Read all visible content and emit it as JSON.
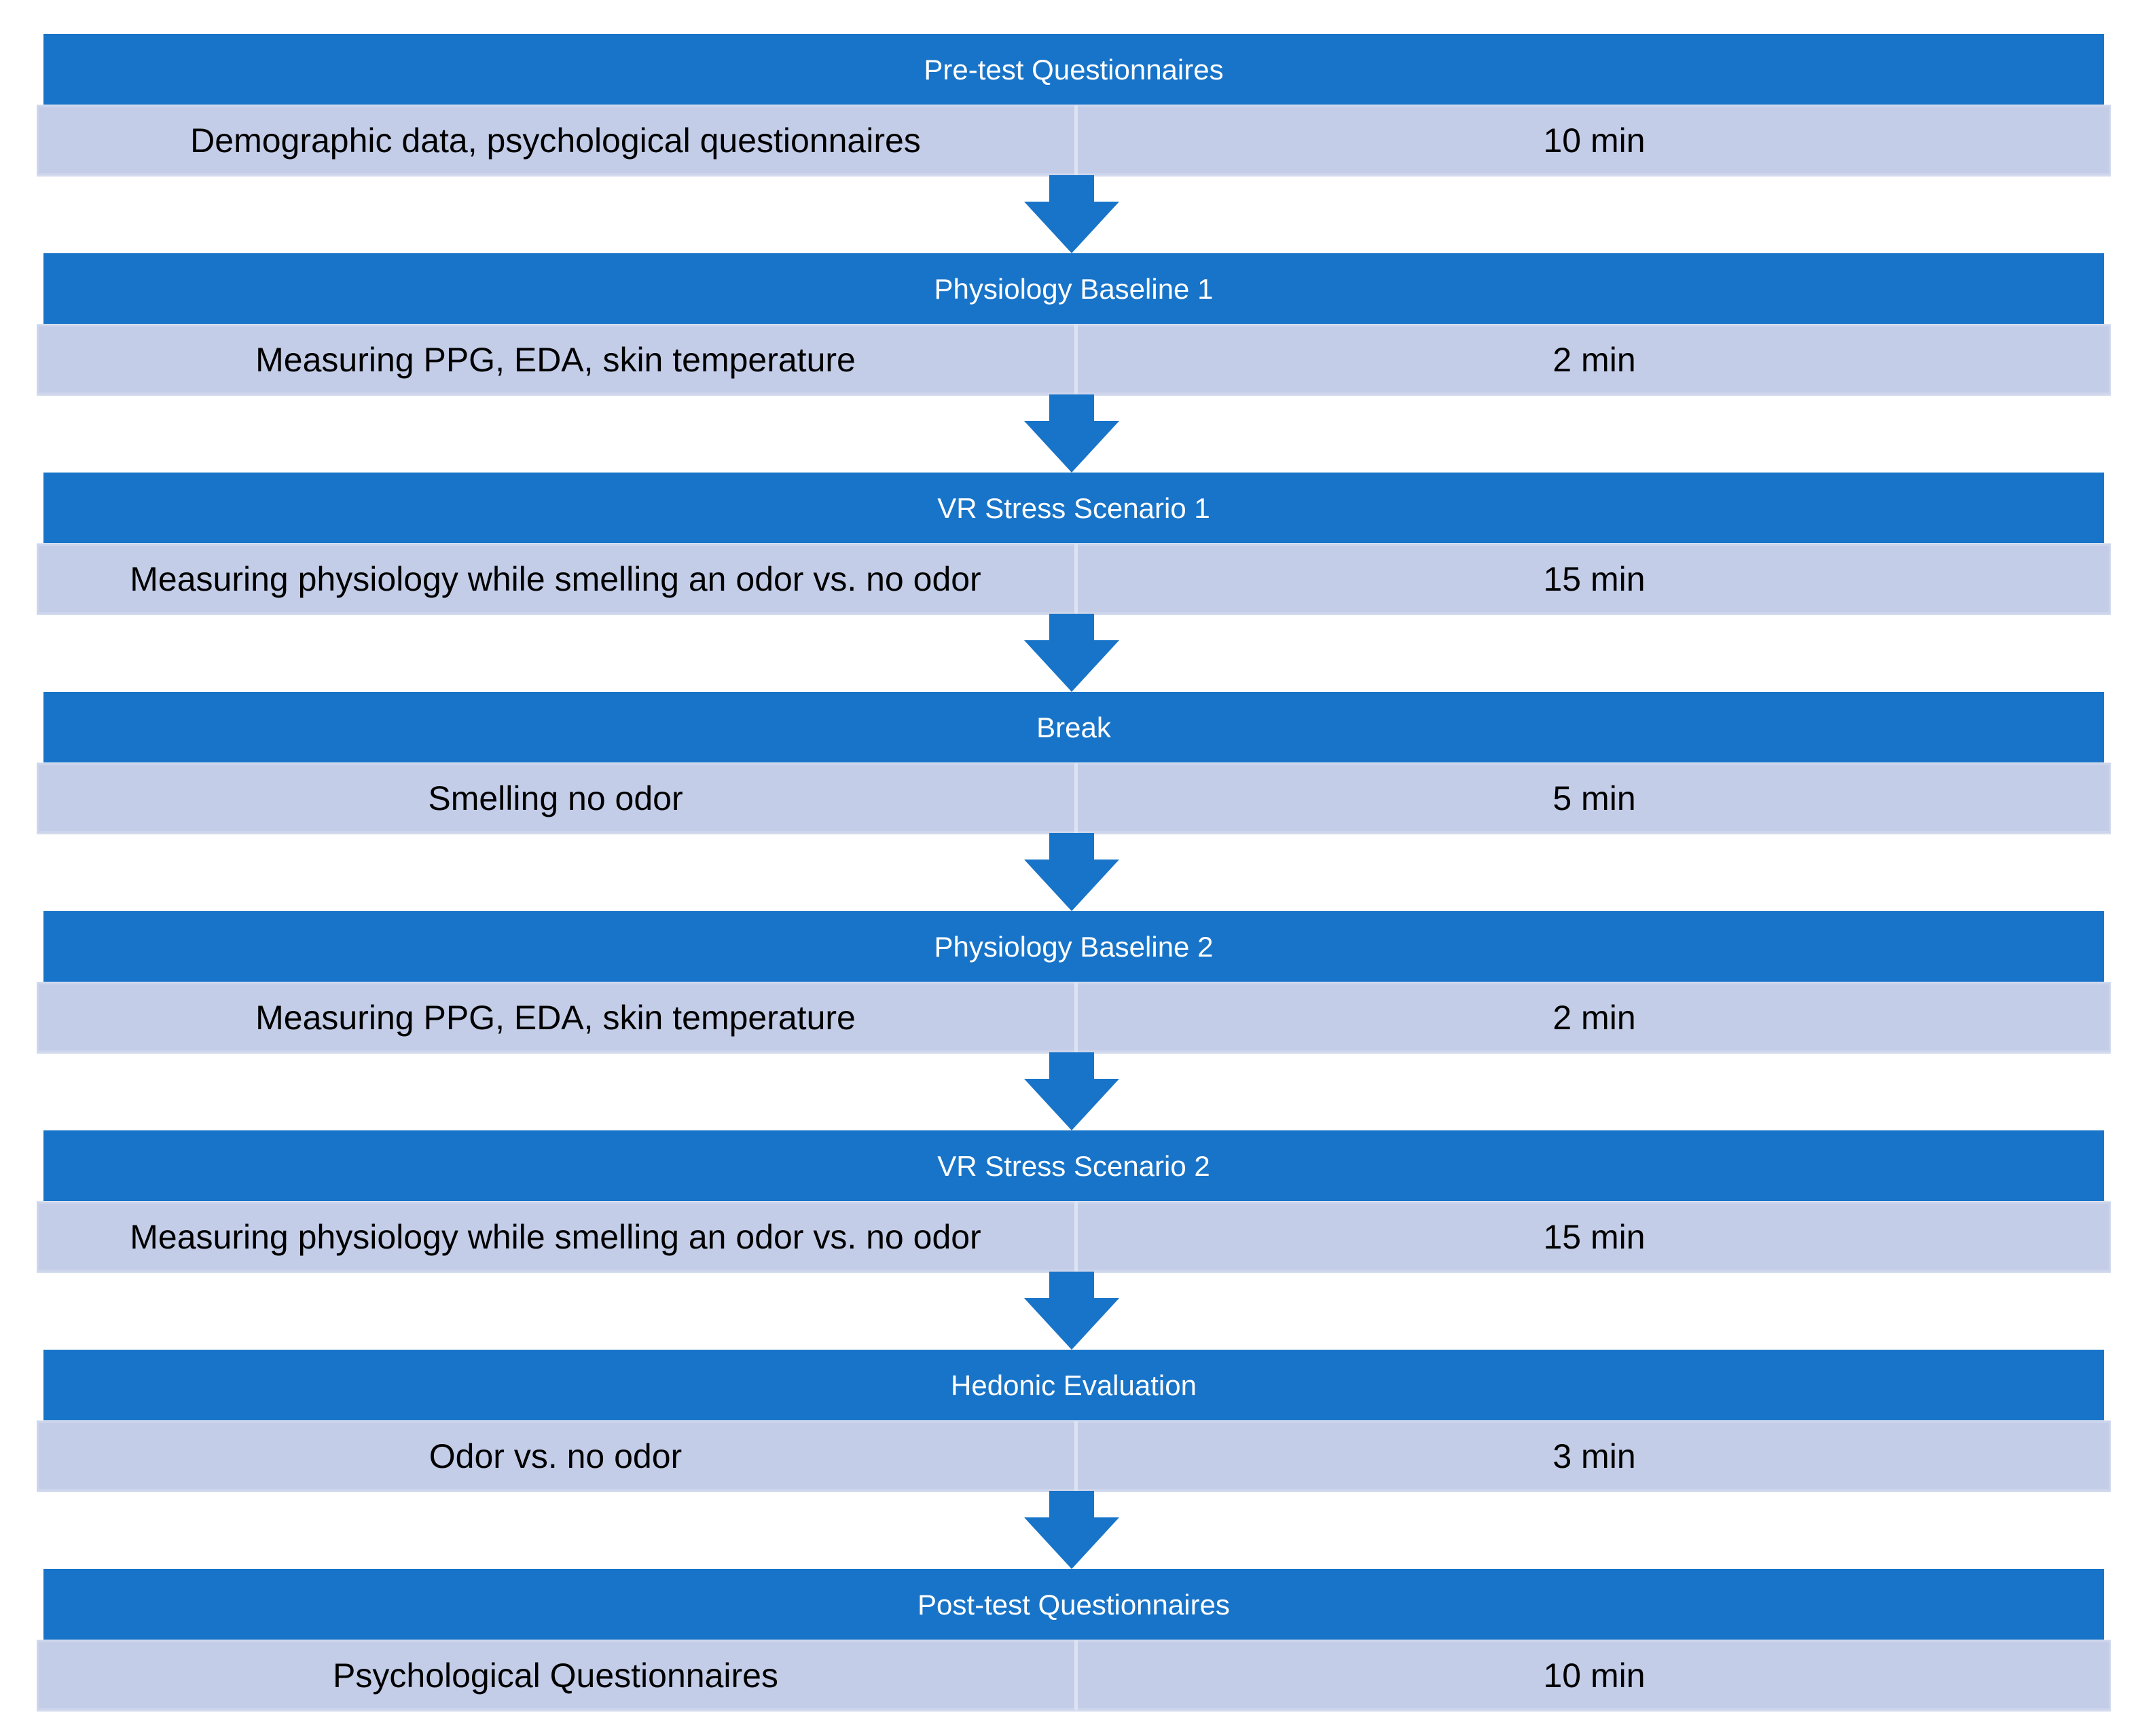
{
  "colors": {
    "header_bg": "#1874C8",
    "row_bg": "#C3CDE8",
    "arrow": "#1874C8"
  },
  "steps": [
    {
      "title": "Pre-test Questionnaires",
      "activity": "Demographic data, psychological questionnaires",
      "duration": "10 min"
    },
    {
      "title": "Physiology Baseline 1",
      "activity": "Measuring PPG, EDA, skin temperature",
      "duration": "2 min"
    },
    {
      "title": "VR Stress Scenario 1",
      "activity": "Measuring physiology while smelling an odor vs. no odor",
      "duration": "15 min"
    },
    {
      "title": "Break",
      "activity": "Smelling no odor",
      "duration": "5 min"
    },
    {
      "title": "Physiology Baseline 2",
      "activity": "Measuring PPG, EDA, skin temperature",
      "duration": "2 min"
    },
    {
      "title": "VR Stress Scenario 2",
      "activity": "Measuring physiology while smelling an odor vs. no odor",
      "duration": "15 min"
    },
    {
      "title": "Hedonic Evaluation",
      "activity": "Odor vs. no odor",
      "duration": "3 min"
    },
    {
      "title": "Post-test Questionnaires",
      "activity": "Psychological Questionnaires",
      "duration": "10 min"
    }
  ]
}
